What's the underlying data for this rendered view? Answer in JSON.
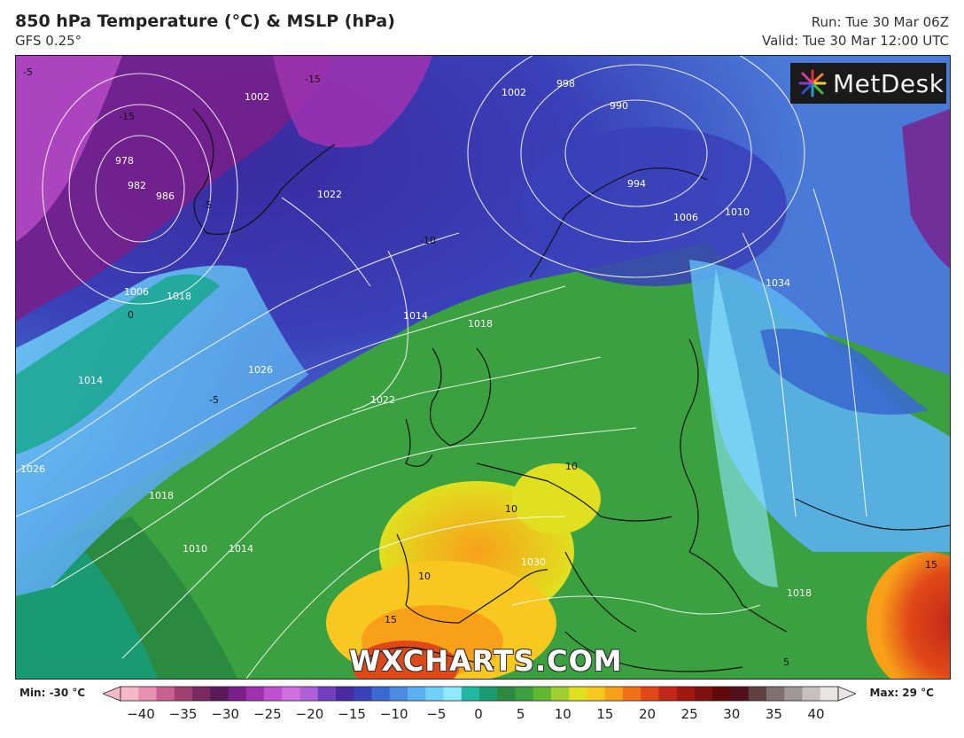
{
  "header": {
    "title": "850 hPa Temperature (°C) & MSLP (hPa)",
    "model": "GFS 0.25°",
    "run": "Run: Tue 30 Mar 06Z",
    "valid": "Valid: Tue 30 Mar 12:00 UTC"
  },
  "brand": {
    "logo_text": "MetDesk",
    "watermark": "WXCHARTS.COM"
  },
  "isobar_labels": [
    "978",
    "982",
    "986",
    "1002",
    "1006",
    "1018",
    "1014",
    "1022",
    "1026",
    "1026",
    "1018",
    "1014",
    "1010",
    "1018",
    "1014",
    "1022",
    "1030",
    "998",
    "990",
    "994",
    "1006",
    "1010",
    "1034",
    "1002",
    "1018"
  ],
  "temperature_labels": [
    "-15",
    "-15",
    "-5",
    "-5",
    "-10",
    "-5",
    "0",
    "10",
    "10",
    "10",
    "15",
    "15",
    "5"
  ],
  "colorbar": {
    "min_label": "Min: -30 °C",
    "max_label": "Max: 29 °C",
    "ticks": [
      "−40",
      "−35",
      "−30",
      "−25",
      "−20",
      "−15",
      "−10",
      "−5",
      "0",
      "5",
      "10",
      "15",
      "20",
      "25",
      "30",
      "35",
      "40"
    ],
    "colors": [
      "#f4b8c8",
      "#e890b0",
      "#c86090",
      "#a04070",
      "#7a2a60",
      "#5a1a5a",
      "#7a1e8a",
      "#a032b0",
      "#c050d0",
      "#d070e0",
      "#b060d8",
      "#7040c0",
      "#4a2aa0",
      "#3a40b8",
      "#3a6ad0",
      "#4a8ae0",
      "#5ab0f0",
      "#70d0f8",
      "#90e8ff",
      "#20b8a0",
      "#1a9a70",
      "#2a8a40",
      "#3aa040",
      "#60b830",
      "#a0d030",
      "#e0e020",
      "#f8c820",
      "#f8a018",
      "#f07018",
      "#e04818",
      "#c02818",
      "#a01810",
      "#801010",
      "#600808",
      "#501020",
      "#604040",
      "#807070",
      "#a09898",
      "#c8c0c0",
      "#e8e4e4"
    ]
  }
}
